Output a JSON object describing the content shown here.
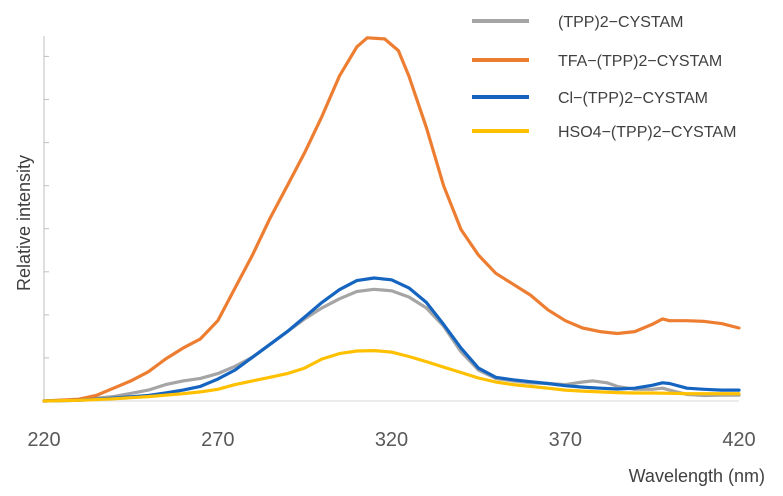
{
  "chart_data": {
    "type": "line",
    "title": "",
    "xlabel": "Wavelength (nm)",
    "ylabel": "Relative intensity",
    "xlim": [
      220,
      420
    ],
    "ylim": [
      0,
      100
    ],
    "xticks": [
      "220",
      "270",
      "320",
      "370",
      "420"
    ],
    "yticks": [
      0,
      11.8,
      23.6,
      35.4,
      47.2,
      59,
      70.8,
      82.6,
      94.4
    ],
    "grid": false,
    "legend_position": "top-right",
    "series": [
      {
        "name": "(TPP)2−CYSTAM",
        "color": "#a5a5a5",
        "x": [
          220,
          230,
          240,
          250,
          255,
          260,
          265,
          270,
          275,
          280,
          285,
          290,
          295,
          300,
          305,
          310,
          315,
          320,
          325,
          330,
          335,
          340,
          345,
          350,
          355,
          360,
          365,
          370,
          375,
          378,
          382,
          385,
          390,
          395,
          398,
          400,
          405,
          410,
          415,
          420
        ],
        "y": [
          0,
          0.3,
          1.2,
          3,
          4.5,
          5.5,
          6.2,
          7.5,
          9.5,
          12,
          15.5,
          19,
          22.5,
          25.5,
          28,
          30,
          30.6,
          30.2,
          28.5,
          25.5,
          20.5,
          13.5,
          8.5,
          6.2,
          5.5,
          5,
          4.8,
          4.5,
          5.2,
          5.5,
          5,
          4,
          3.2,
          3.2,
          3.5,
          3,
          1.8,
          1.5,
          1.6,
          1.6
        ]
      },
      {
        "name": "TFA−(TPP)2−CYSTAM",
        "color": "#ed7d31",
        "x": [
          220,
          230,
          235,
          240,
          245,
          250,
          255,
          260,
          265,
          270,
          275,
          280,
          285,
          290,
          295,
          300,
          305,
          310,
          313,
          318,
          322,
          325,
          330,
          335,
          340,
          345,
          350,
          355,
          360,
          365,
          370,
          375,
          380,
          385,
          390,
          395,
          398,
          400,
          405,
          410,
          415,
          420
        ],
        "y": [
          0,
          0.5,
          1.5,
          3.5,
          5.5,
          8,
          11.5,
          14.5,
          17,
          22,
          31,
          40,
          50,
          59,
          68,
          78,
          89,
          97,
          99.5,
          99.2,
          96,
          89,
          75,
          59,
          47,
          40,
          35,
          32,
          29,
          25,
          22,
          20,
          19,
          18.5,
          19,
          21,
          22.5,
          22,
          22,
          21.8,
          21.2,
          20
        ]
      },
      {
        "name": "Cl−(TPP)2−CYSTAM",
        "color": "#1565c0",
        "x": [
          220,
          230,
          240,
          250,
          255,
          260,
          265,
          270,
          275,
          280,
          285,
          290,
          295,
          300,
          305,
          310,
          315,
          320,
          325,
          330,
          335,
          340,
          345,
          350,
          355,
          360,
          365,
          370,
          375,
          380,
          385,
          390,
          395,
          398,
          400,
          405,
          410,
          415,
          420
        ],
        "y": [
          0,
          0.2,
          0.8,
          1.5,
          2.2,
          3,
          4,
          6,
          8.5,
          12,
          15.5,
          19,
          23,
          27,
          30.5,
          33,
          33.7,
          33.2,
          31,
          27,
          21,
          14.5,
          9,
          6.5,
          5.8,
          5.3,
          4.8,
          4.2,
          3.8,
          3.5,
          3.3,
          3.5,
          4.3,
          5,
          4.8,
          3.5,
          3.2,
          3,
          3
        ]
      },
      {
        "name": "HSO4−(TPP)2−CYSTAM",
        "color": "#ffc000",
        "x": [
          220,
          230,
          240,
          250,
          260,
          265,
          270,
          275,
          280,
          285,
          290,
          295,
          300,
          305,
          310,
          315,
          320,
          325,
          330,
          335,
          340,
          345,
          350,
          355,
          360,
          365,
          370,
          375,
          380,
          385,
          390,
          395,
          400,
          405,
          410,
          415,
          420
        ],
        "y": [
          0,
          0.2,
          0.6,
          1.2,
          2,
          2.5,
          3.2,
          4.5,
          5.5,
          6.5,
          7.5,
          9,
          11.5,
          13,
          13.7,
          13.8,
          13.4,
          12.2,
          10.8,
          9.3,
          7.8,
          6.3,
          5.2,
          4.5,
          4,
          3.5,
          3,
          2.7,
          2.5,
          2.3,
          2.2,
          2.2,
          2.1,
          2,
          2,
          2,
          2
        ]
      }
    ]
  }
}
